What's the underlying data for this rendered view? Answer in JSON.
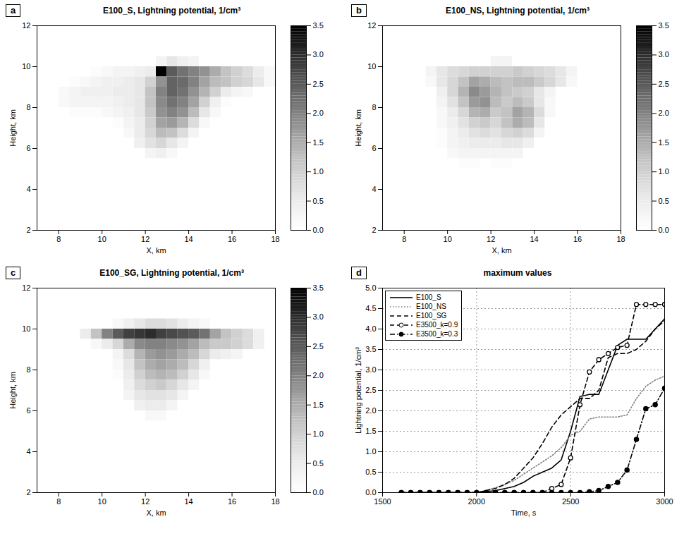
{
  "chart_data": [
    {
      "type": "heatmap",
      "panel": "a",
      "title": "E100_S, Lightning potential, 1/cm³",
      "xlabel": "X, km",
      "ylabel": "Height, km",
      "xlim": [
        7,
        18
      ],
      "xticks": [
        8,
        10,
        12,
        14,
        16,
        18
      ],
      "ylim": [
        2,
        12
      ],
      "yticks": [
        2,
        4,
        6,
        8,
        10,
        12
      ],
      "color": "greys",
      "colorbar": {
        "range": [
          0,
          3.5
        ],
        "ticks": [
          0,
          0.5,
          1,
          1.5,
          2,
          2.5,
          3,
          3.5
        ]
      },
      "x_edges": [
        8,
        8.5,
        9,
        9.5,
        10,
        10.5,
        11,
        11.5,
        12,
        12.5,
        13,
        13.5,
        14,
        14.5,
        15,
        15.5,
        16,
        16.5,
        17,
        17.5,
        18
      ],
      "y_edges": [
        11,
        10.5,
        10,
        9.5,
        9,
        8.5,
        8,
        7.5,
        7,
        6.5,
        6,
        5.5,
        5
      ],
      "cells": [
        [
          0,
          0,
          0,
          0,
          0,
          0,
          0,
          0,
          0,
          0,
          0,
          0,
          0,
          0,
          0,
          0,
          0,
          0,
          0,
          0
        ],
        [
          0,
          0,
          0,
          0,
          0,
          0,
          0,
          0,
          0,
          0.3,
          0.6,
          0.4,
          0.3,
          0,
          0,
          0,
          0,
          0,
          0,
          0
        ],
        [
          0,
          0,
          0,
          0.1,
          0.2,
          0.3,
          0.3,
          0.4,
          0.5,
          3.5,
          2.5,
          2.2,
          2.0,
          1.8,
          1.5,
          1.2,
          1.0,
          0.8,
          0.5,
          0.2
        ],
        [
          0,
          0.1,
          0.2,
          0.3,
          0.4,
          0.4,
          0.5,
          0.6,
          1.0,
          1.8,
          2.4,
          2.3,
          2.0,
          1.6,
          1.3,
          1.2,
          1.0,
          0.9,
          0.6,
          0.2
        ],
        [
          0.2,
          0.3,
          0.4,
          0.4,
          0.4,
          0.5,
          0.5,
          0.6,
          1.2,
          2.0,
          2.4,
          2.2,
          1.8,
          1.4,
          1.0,
          0.5,
          0.3,
          0.2,
          0,
          0
        ],
        [
          0.2,
          0.3,
          0.3,
          0.3,
          0.3,
          0.4,
          0.5,
          0.6,
          1.2,
          1.9,
          2.2,
          2.0,
          1.6,
          1.0,
          0.4,
          0.1,
          0,
          0,
          0,
          0
        ],
        [
          0,
          0.1,
          0.1,
          0.1,
          0.2,
          0.3,
          0.4,
          0.6,
          1.1,
          1.8,
          2.0,
          1.8,
          1.3,
          0.6,
          0.2,
          0,
          0,
          0,
          0,
          0
        ],
        [
          0,
          0,
          0,
          0,
          0,
          0.1,
          0.3,
          0.5,
          1.0,
          1.6,
          1.7,
          1.4,
          0.8,
          0.2,
          0,
          0,
          0,
          0,
          0,
          0
        ],
        [
          0,
          0,
          0,
          0,
          0,
          0,
          0.2,
          0.5,
          0.9,
          1.3,
          1.2,
          0.8,
          0.3,
          0,
          0,
          0,
          0,
          0,
          0,
          0
        ],
        [
          0,
          0,
          0,
          0,
          0,
          0,
          0,
          0.4,
          0.7,
          0.9,
          0.6,
          0.3,
          0,
          0,
          0,
          0,
          0,
          0,
          0,
          0
        ],
        [
          0,
          0,
          0,
          0,
          0,
          0,
          0,
          0,
          0.3,
          0.4,
          0.2,
          0,
          0,
          0,
          0,
          0,
          0,
          0,
          0,
          0
        ],
        [
          0,
          0,
          0,
          0,
          0,
          0,
          0,
          0,
          0,
          0,
          0,
          0,
          0,
          0,
          0,
          0,
          0,
          0,
          0,
          0
        ]
      ]
    },
    {
      "type": "heatmap",
      "panel": "b",
      "title": "E100_NS, Lightning potential, 1/cm³",
      "xlabel": "X, km",
      "ylabel": "Height, km",
      "xlim": [
        7,
        18
      ],
      "xticks": [
        8,
        10,
        12,
        14,
        16,
        18
      ],
      "ylim": [
        2,
        12
      ],
      "yticks": [
        2,
        4,
        6,
        8,
        10,
        12
      ],
      "color": "greys",
      "colorbar": {
        "range": [
          0,
          3.5
        ],
        "ticks": [
          0,
          0.5,
          1,
          1.5,
          2,
          2.5,
          3,
          3.5
        ]
      },
      "x_edges": [
        8,
        8.5,
        9,
        9.5,
        10,
        10.5,
        11,
        11.5,
        12,
        12.5,
        13,
        13.5,
        14,
        14.5,
        15,
        15.5,
        16,
        16.5,
        17,
        17.5,
        18
      ],
      "y_edges": [
        11,
        10.5,
        10,
        9.5,
        9,
        8.5,
        8,
        7.5,
        7,
        6.5,
        6,
        5.5,
        5
      ],
      "cells": [
        [
          0,
          0,
          0,
          0,
          0,
          0,
          0,
          0,
          0,
          0,
          0,
          0,
          0,
          0,
          0,
          0,
          0,
          0,
          0,
          0
        ],
        [
          0,
          0,
          0,
          0,
          0,
          0,
          0,
          0,
          0.3,
          0.3,
          0,
          0,
          0,
          0,
          0,
          0,
          0,
          0,
          0,
          0
        ],
        [
          0,
          0,
          0.3,
          0.6,
          0.8,
          0.9,
          1.0,
          1.0,
          1.0,
          1.0,
          1.1,
          1.0,
          0.9,
          0.8,
          0.6,
          0.3,
          0,
          0,
          0,
          0
        ],
        [
          0,
          0,
          0.2,
          0.6,
          0.9,
          1.2,
          1.6,
          1.5,
          1.3,
          1.2,
          1.3,
          1.3,
          1.1,
          0.9,
          0.6,
          0.2,
          0,
          0,
          0,
          0
        ],
        [
          0,
          0,
          0,
          0.4,
          0.9,
          1.4,
          1.9,
          1.7,
          1.4,
          1.2,
          1.1,
          1.0,
          0.6,
          0.3,
          0,
          0,
          0,
          0,
          0,
          0
        ],
        [
          0,
          0,
          0,
          0.3,
          0.7,
          1.2,
          1.7,
          1.8,
          1.3,
          1.1,
          1.3,
          1.1,
          0.6,
          0.2,
          0,
          0,
          0,
          0,
          0,
          0
        ],
        [
          0,
          0,
          0,
          0.2,
          0.5,
          0.9,
          1.4,
          1.5,
          1.1,
          1.2,
          1.6,
          1.4,
          0.8,
          0.2,
          0,
          0,
          0,
          0,
          0,
          0
        ],
        [
          0,
          0,
          0,
          0.2,
          0.4,
          0.7,
          1.0,
          1.1,
          0.9,
          1.2,
          1.5,
          1.3,
          0.6,
          0,
          0,
          0,
          0,
          0,
          0,
          0
        ],
        [
          0,
          0,
          0,
          0.1,
          0.3,
          0.5,
          0.7,
          0.8,
          0.7,
          0.9,
          1.0,
          0.8,
          0.3,
          0,
          0,
          0,
          0,
          0,
          0,
          0
        ],
        [
          0,
          0,
          0,
          0.1,
          0.3,
          0.4,
          0.5,
          0.5,
          0.5,
          0.6,
          0.6,
          0.4,
          0,
          0,
          0,
          0,
          0,
          0,
          0,
          0
        ],
        [
          0,
          0,
          0,
          0,
          0.2,
          0.3,
          0.3,
          0.3,
          0.3,
          0.3,
          0.3,
          0,
          0,
          0,
          0,
          0,
          0,
          0,
          0,
          0
        ],
        [
          0,
          0,
          0,
          0,
          0,
          0.1,
          0.1,
          0,
          0.1,
          0.1,
          0,
          0,
          0,
          0,
          0,
          0,
          0,
          0,
          0,
          0
        ]
      ]
    },
    {
      "type": "heatmap",
      "panel": "c",
      "title": "E100_SG, Lightning potential, 1/cm³",
      "xlabel": "X, km",
      "ylabel": "Height, km",
      "xlim": [
        7,
        18
      ],
      "xticks": [
        8,
        10,
        12,
        14,
        16,
        18
      ],
      "ylim": [
        2,
        12
      ],
      "yticks": [
        2,
        4,
        6,
        8,
        10,
        12
      ],
      "color": "greys",
      "colorbar": {
        "range": [
          0,
          3.5
        ],
        "ticks": [
          0,
          0.5,
          1,
          1.5,
          2,
          2.5,
          3,
          3.5
        ]
      },
      "x_edges": [
        8,
        8.5,
        9,
        9.5,
        10,
        10.5,
        11,
        11.5,
        12,
        12.5,
        13,
        13.5,
        14,
        14.5,
        15,
        15.5,
        16,
        16.5,
        17,
        17.5,
        18
      ],
      "y_edges": [
        11,
        10.5,
        10,
        9.5,
        9,
        8.5,
        8,
        7.5,
        7,
        6.5,
        6,
        5.5,
        5
      ],
      "cells": [
        [
          0,
          0,
          0,
          0,
          0,
          0,
          0,
          0,
          0,
          0,
          0,
          0,
          0,
          0,
          0,
          0,
          0,
          0,
          0,
          0
        ],
        [
          0,
          0,
          0,
          0,
          0,
          0.2,
          0.4,
          0.6,
          0.8,
          0.8,
          0.7,
          0.5,
          0.3,
          0.2,
          0,
          0,
          0,
          0,
          0,
          0
        ],
        [
          0,
          0,
          0.5,
          1.2,
          2.0,
          2.5,
          2.8,
          2.9,
          3.0,
          2.8,
          2.7,
          2.6,
          2.5,
          2.2,
          1.6,
          1.2,
          1.0,
          0.8,
          0.4,
          0
        ],
        [
          0,
          0,
          0,
          0.2,
          0.5,
          0.9,
          1.5,
          1.9,
          2.0,
          2.0,
          1.9,
          1.8,
          1.6,
          1.3,
          1.1,
          1.1,
          1.0,
          0.8,
          0.4,
          0
        ],
        [
          0,
          0,
          0,
          0,
          0,
          0.3,
          0.8,
          1.4,
          1.7,
          1.8,
          1.7,
          1.5,
          1.3,
          0.9,
          0.5,
          0.4,
          0.3,
          0,
          0,
          0
        ],
        [
          0,
          0,
          0,
          0,
          0,
          0.2,
          0.6,
          1.2,
          1.5,
          1.6,
          1.5,
          1.3,
          0.9,
          0.4,
          0,
          0,
          0,
          0,
          0,
          0
        ],
        [
          0,
          0,
          0,
          0,
          0,
          0.1,
          0.5,
          1.0,
          1.3,
          1.4,
          1.3,
          1.0,
          0.6,
          0.2,
          0,
          0,
          0,
          0,
          0,
          0
        ],
        [
          0,
          0,
          0,
          0,
          0,
          0,
          0.4,
          0.8,
          1.0,
          1.1,
          0.9,
          0.6,
          0.3,
          0,
          0,
          0,
          0,
          0,
          0,
          0
        ],
        [
          0,
          0,
          0,
          0,
          0,
          0,
          0.3,
          0.6,
          0.7,
          0.7,
          0.6,
          0.3,
          0,
          0,
          0,
          0,
          0,
          0,
          0,
          0
        ],
        [
          0,
          0,
          0,
          0,
          0,
          0,
          0,
          0.4,
          0.5,
          0.5,
          0.3,
          0,
          0,
          0,
          0,
          0,
          0,
          0,
          0,
          0
        ],
        [
          0,
          0,
          0,
          0,
          0,
          0,
          0,
          0,
          0.2,
          0.2,
          0,
          0,
          0,
          0,
          0,
          0,
          0,
          0,
          0,
          0
        ],
        [
          0,
          0,
          0,
          0,
          0,
          0,
          0,
          0,
          0,
          0,
          0,
          0,
          0,
          0,
          0,
          0,
          0,
          0,
          0,
          0
        ]
      ]
    },
    {
      "type": "line",
      "panel": "d",
      "title": "maximum values",
      "xlabel": "Time, s",
      "ylabel": "Lightning potential, 1/cm³",
      "xlim": [
        1500,
        3000
      ],
      "xticks": [
        1500,
        2000,
        2500,
        3000
      ],
      "ylim": [
        0,
        5
      ],
      "yticks": [
        0,
        0.5,
        1,
        1.5,
        2,
        2.5,
        3,
        3.5,
        4,
        4.5,
        5
      ],
      "grid": true,
      "legend": "upper left",
      "x": [
        1600,
        1650,
        1700,
        1750,
        1800,
        1850,
        1900,
        1950,
        2000,
        2050,
        2100,
        2150,
        2200,
        2250,
        2300,
        2350,
        2400,
        2450,
        2500,
        2550,
        2600,
        2650,
        2700,
        2750,
        2800,
        2850,
        2900,
        2950,
        3000
      ],
      "series": [
        {
          "name": "E100_S",
          "color": "#000000",
          "line_style": "solid",
          "values": [
            0,
            0,
            0,
            0,
            0,
            0,
            0,
            0,
            0,
            0.02,
            0.05,
            0.1,
            0.15,
            0.25,
            0.4,
            0.5,
            0.6,
            0.8,
            1.5,
            2.35,
            2.4,
            2.4,
            3.0,
            3.6,
            3.75,
            3.75,
            3.75,
            4.0,
            4.25
          ]
        },
        {
          "name": "E100_NS",
          "color": "#7f7f7f",
          "line_style": "dotted",
          "values": [
            0,
            0,
            0,
            0,
            0,
            0,
            0,
            0,
            0,
            0.05,
            0.12,
            0.2,
            0.3,
            0.45,
            0.6,
            0.75,
            0.9,
            1.1,
            1.4,
            1.5,
            1.8,
            1.85,
            1.85,
            1.85,
            1.9,
            2.3,
            2.6,
            2.75,
            2.85
          ]
        },
        {
          "name": "E100_SG",
          "color": "#000000",
          "line_style": "dashed",
          "values": [
            0,
            0,
            0,
            0,
            0,
            0,
            0,
            0,
            0,
            0.05,
            0.1,
            0.2,
            0.35,
            0.6,
            0.85,
            1.2,
            1.6,
            1.9,
            2.1,
            2.3,
            2.3,
            2.5,
            3.3,
            3.4,
            3.4,
            3.5,
            3.7,
            4.0,
            4.2
          ]
        },
        {
          "name": "E3500_k=0.9",
          "color": "#000000",
          "line_style": "dashed",
          "marker": "circle-open",
          "values": [
            0,
            0,
            0,
            0,
            0,
            0,
            0,
            0,
            0,
            0,
            0,
            0,
            0,
            0,
            0,
            0,
            0.1,
            0.2,
            0.85,
            2.15,
            2.95,
            3.25,
            3.4,
            3.55,
            3.6,
            4.6,
            4.6,
            4.6,
            4.6
          ]
        },
        {
          "name": "E3500_k=0.3",
          "color": "#000000",
          "line_style": "dashdot",
          "marker": "circle",
          "values": [
            0,
            0,
            0,
            0,
            0,
            0,
            0,
            0,
            0,
            0,
            0,
            0,
            0,
            0,
            0,
            0,
            0,
            0,
            0,
            0,
            0.02,
            0.05,
            0.15,
            0.25,
            0.55,
            1.3,
            2.05,
            2.15,
            2.55
          ]
        }
      ]
    }
  ]
}
